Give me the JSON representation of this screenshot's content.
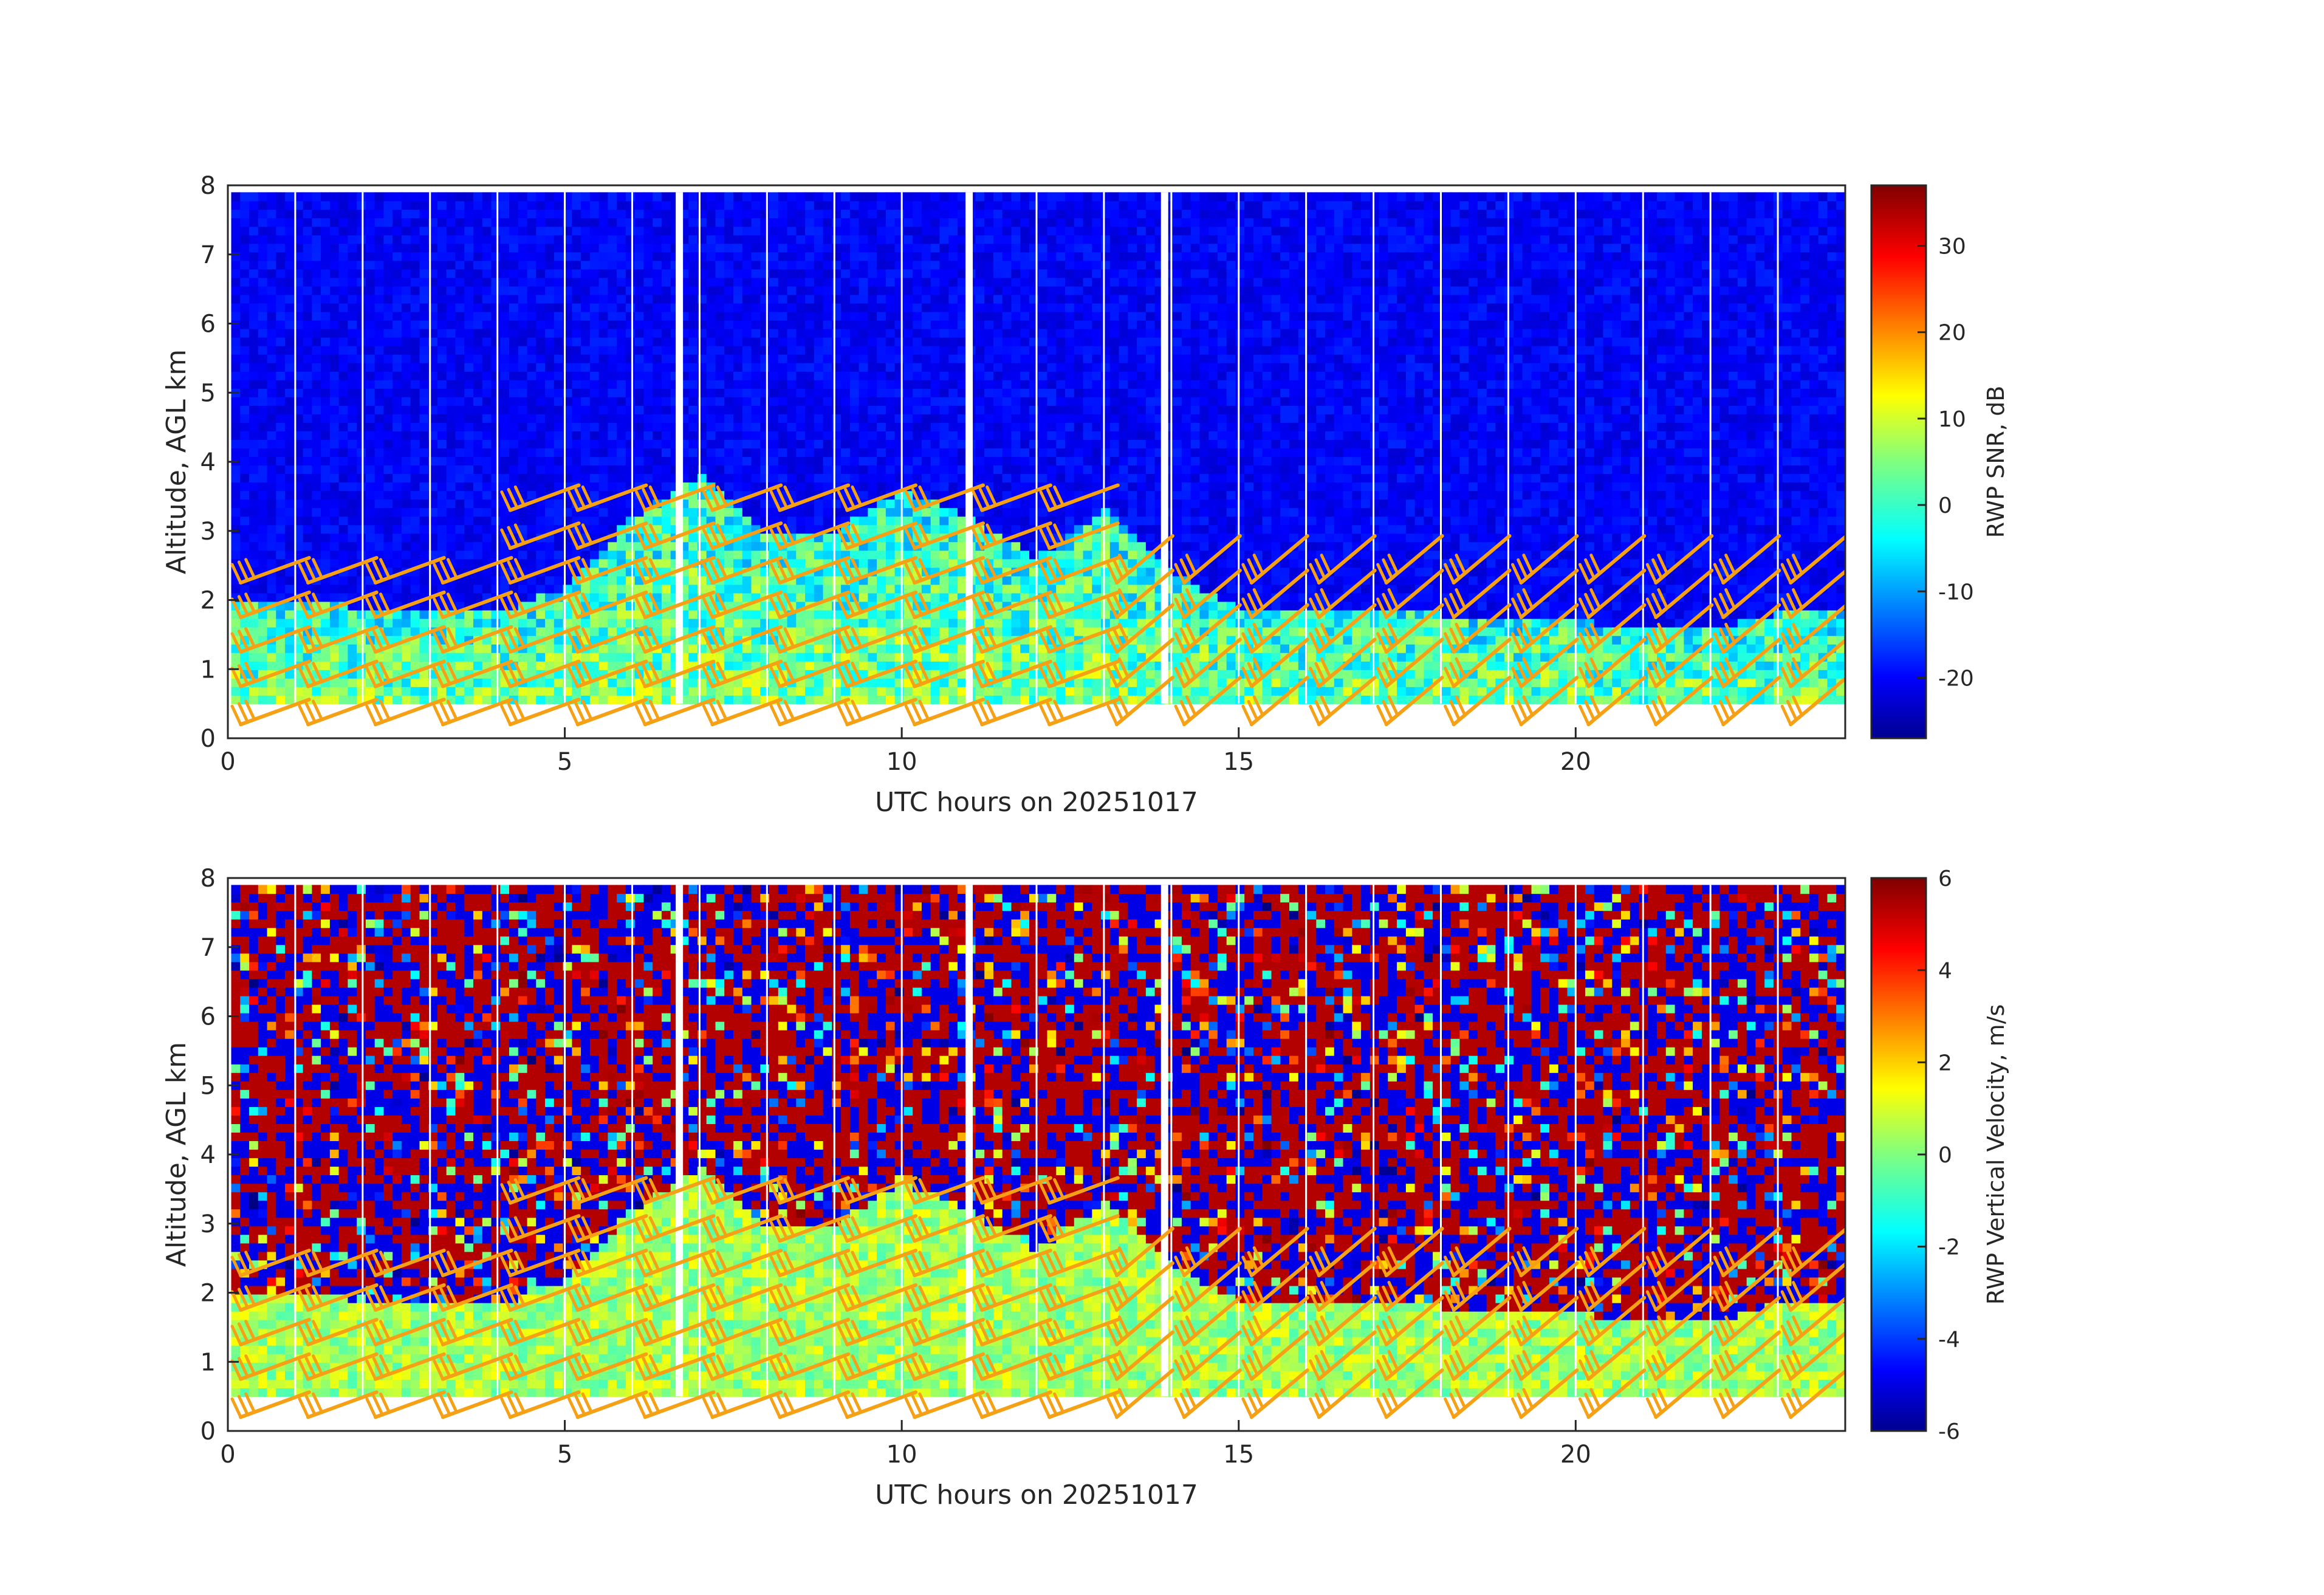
{
  "chart_data": [
    {
      "type": "heatmap",
      "title": "",
      "xlabel": "UTC hours on 20251017",
      "ylabel": "Altitude, AGL km",
      "xlim": [
        0,
        24
      ],
      "ylim": [
        0,
        8
      ],
      "xticks": [
        0,
        5,
        10,
        15,
        20
      ],
      "yticks": [
        0,
        1,
        2,
        3,
        4,
        5,
        6,
        7,
        8
      ],
      "colorbar": {
        "label": "RWP SNR, dB",
        "limits": [
          -27,
          37
        ],
        "ticks": [
          -20,
          -10,
          0,
          10,
          20,
          30
        ],
        "colormap": "jet"
      },
      "overlay": "wind barbs (orange)",
      "background_echo_top_km": [
        [
          0,
          2.0
        ],
        [
          1,
          2.0
        ],
        [
          2,
          1.9
        ],
        [
          3,
          1.8
        ],
        [
          4,
          1.8
        ],
        [
          5,
          2.2
        ],
        [
          6,
          3.2
        ],
        [
          7,
          3.8
        ],
        [
          8,
          3.0
        ],
        [
          9,
          3.0
        ],
        [
          10,
          3.6
        ],
        [
          11,
          3.2
        ],
        [
          12,
          2.6
        ],
        [
          13,
          3.3
        ],
        [
          14,
          2.4
        ],
        [
          15,
          1.9
        ],
        [
          16,
          1.8
        ],
        [
          17,
          1.8
        ],
        [
          18,
          1.8
        ],
        [
          19,
          1.7
        ],
        [
          20,
          1.7
        ],
        [
          21,
          1.6
        ],
        [
          22,
          1.6
        ],
        [
          23,
          1.8
        ],
        [
          24,
          1.8
        ]
      ],
      "data_gaps_utc": [
        6.7,
        11.0,
        13.9
      ]
    },
    {
      "type": "heatmap",
      "title": "",
      "xlabel": "UTC hours on 20251017",
      "ylabel": "Altitude, AGL km",
      "xlim": [
        0,
        24
      ],
      "ylim": [
        0,
        8
      ],
      "xticks": [
        0,
        5,
        10,
        15,
        20
      ],
      "yticks": [
        0,
        1,
        2,
        3,
        4,
        5,
        6,
        7,
        8
      ],
      "colorbar": {
        "label": "RWP Vertical Velocity, m/s",
        "limits": [
          -6,
          6
        ],
        "ticks": [
          -6,
          -4,
          -2,
          0,
          2,
          4,
          6
        ],
        "colormap": "jet"
      },
      "overlay": "wind barbs (orange)",
      "data_gaps_utc": [
        6.7,
        11.0,
        13.9
      ]
    }
  ],
  "colors": {
    "barb": "#f5a015",
    "noise_low": "#0a2bd0",
    "boundary_layer": "#b7ec46",
    "axis": "#262626"
  }
}
